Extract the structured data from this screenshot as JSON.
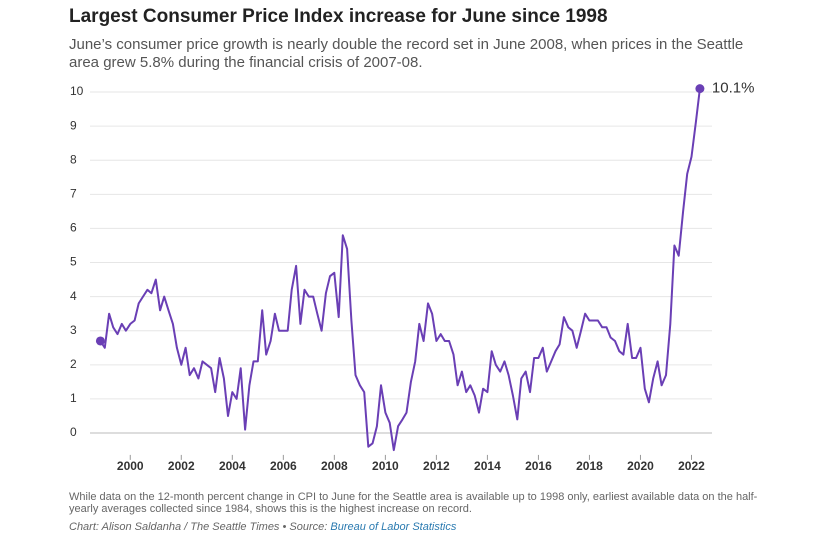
{
  "chart_data": {
    "type": "line",
    "title": "Largest Consumer Price Index increase for June since 1998",
    "subtitle": "June’s consumer price growth is nearly double the record set in June 2008, when prices in the Seattle area grew 5.8% during the financial crisis of 2007-08.",
    "note": "While data on the 12-month percent change in CPI to June for the Seattle area is available up to 1998 only, earliest available data on the half-yearly averages collected since 1984, shows this is the highest increase on record.",
    "credit": "Chart: Alison Saldanha / The Seattle Times • Source:",
    "source": "Bureau of Labor Statistics",
    "x": [
      1998.83,
      1999.0,
      1999.17,
      1999.33,
      1999.5,
      1999.67,
      1999.83,
      2000.0,
      2000.17,
      2000.33,
      2000.5,
      2000.67,
      2000.83,
      2001.0,
      2001.17,
      2001.33,
      2001.5,
      2001.67,
      2001.83,
      2002.0,
      2002.17,
      2002.33,
      2002.5,
      2002.67,
      2002.83,
      2003.0,
      2003.17,
      2003.33,
      2003.5,
      2003.67,
      2003.83,
      2004.0,
      2004.17,
      2004.33,
      2004.5,
      2004.67,
      2004.83,
      2005.0,
      2005.17,
      2005.33,
      2005.5,
      2005.67,
      2005.83,
      2006.0,
      2006.17,
      2006.33,
      2006.5,
      2006.67,
      2006.83,
      2007.0,
      2007.17,
      2007.33,
      2007.5,
      2007.67,
      2007.83,
      2008.0,
      2008.17,
      2008.33,
      2008.5,
      2008.67,
      2008.83,
      2009.0,
      2009.17,
      2009.33,
      2009.5,
      2009.67,
      2009.83,
      2010.0,
      2010.17,
      2010.33,
      2010.5,
      2010.67,
      2010.83,
      2011.0,
      2011.17,
      2011.33,
      2011.5,
      2011.67,
      2011.83,
      2012.0,
      2012.17,
      2012.33,
      2012.5,
      2012.67,
      2012.83,
      2013.0,
      2013.17,
      2013.33,
      2013.5,
      2013.67,
      2013.83,
      2014.0,
      2014.17,
      2014.33,
      2014.5,
      2014.67,
      2014.83,
      2015.0,
      2015.17,
      2015.33,
      2015.5,
      2015.67,
      2015.83,
      2016.0,
      2016.17,
      2016.33,
      2016.5,
      2016.67,
      2016.83,
      2017.0,
      2017.17,
      2017.33,
      2017.5,
      2017.67,
      2017.83,
      2018.0,
      2018.17,
      2018.33,
      2018.5,
      2018.67,
      2018.83,
      2019.0,
      2019.17,
      2019.33,
      2019.5,
      2019.67,
      2019.83,
      2020.0,
      2020.17,
      2020.33,
      2020.5,
      2020.67,
      2020.83,
      2021.0,
      2021.17,
      2021.33,
      2021.5,
      2021.67,
      2021.83,
      2022.0,
      2022.17,
      2022.33
    ],
    "series": [
      {
        "color": "#6a3fb5",
        "values": [
          2.7,
          2.5,
          3.5,
          3.1,
          2.9,
          3.2,
          3.0,
          3.2,
          3.3,
          3.8,
          4.0,
          4.2,
          4.1,
          4.5,
          3.6,
          4.0,
          3.6,
          3.2,
          2.5,
          2.0,
          2.5,
          1.7,
          1.9,
          1.6,
          2.1,
          2.0,
          1.9,
          1.2,
          2.2,
          1.6,
          0.5,
          1.2,
          1.0,
          1.9,
          0.1,
          1.4,
          2.1,
          2.1,
          3.6,
          2.3,
          2.7,
          3.5,
          3.0,
          3.0,
          3.0,
          4.2,
          4.9,
          3.2,
          4.2,
          4.0,
          4.0,
          3.5,
          3.0,
          4.1,
          4.6,
          4.7,
          3.4,
          5.8,
          5.4,
          3.3,
          1.7,
          1.4,
          1.2,
          -0.4,
          -0.3,
          0.2,
          1.4,
          0.6,
          0.3,
          -0.5,
          0.2,
          0.4,
          0.6,
          1.5,
          2.1,
          3.2,
          2.7,
          3.8,
          3.5,
          2.7,
          2.9,
          2.7,
          2.7,
          2.3,
          1.4,
          1.8,
          1.2,
          1.4,
          1.1,
          0.6,
          1.3,
          1.2,
          2.4,
          2.0,
          1.8,
          2.1,
          1.7,
          1.1,
          0.4,
          1.6,
          1.8,
          1.2,
          2.2,
          2.2,
          2.5,
          1.8,
          2.1,
          2.4,
          2.6,
          3.4,
          3.1,
          3.0,
          2.5,
          3.0,
          3.5,
          3.3,
          3.3,
          3.3,
          3.1,
          3.1,
          2.8,
          2.7,
          2.4,
          2.3,
          3.2,
          2.2,
          2.2,
          2.5,
          1.3,
          0.9,
          1.6,
          2.1,
          1.4,
          1.7,
          3.2,
          5.5,
          5.2,
          6.5,
          7.6,
          8.1,
          9.1,
          10.1
        ]
      }
    ],
    "annotations": [
      {
        "text": "10.1%",
        "x": 2022.33,
        "y": 10.1
      }
    ],
    "xlim": [
      1998.5,
      2023
    ],
    "xticks": [
      2000,
      2002,
      2004,
      2006,
      2008,
      2010,
      2012,
      2014,
      2016,
      2018,
      2020,
      2022
    ],
    "ylim": [
      -0.7,
      10.3
    ],
    "yticks": [
      0,
      1,
      2,
      3,
      4,
      5,
      6,
      7,
      8,
      9,
      10
    ],
    "grid": true
  }
}
